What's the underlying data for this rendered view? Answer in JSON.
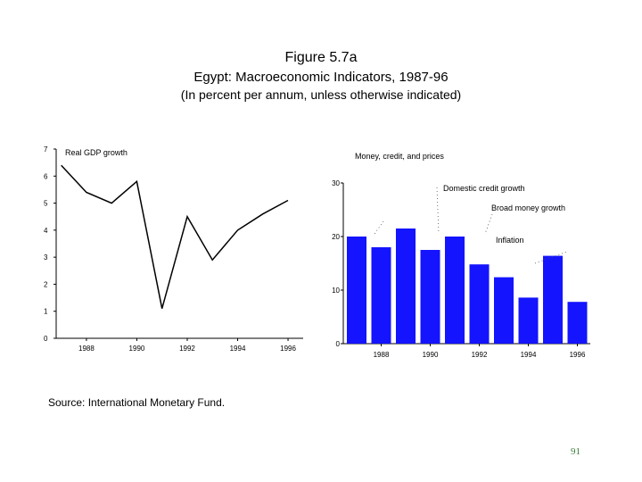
{
  "header": {
    "title": "Figure 5.7a",
    "subtitle": "Egypt: Macroeconomic Indicators, 1987-96",
    "note": "(In percent per annum, unless otherwise indicated)"
  },
  "footer": {
    "source": "Source: International Monetary Fund.",
    "page_number": "91"
  },
  "chart_data": [
    {
      "type": "line",
      "series": [
        {
          "name": "Real GDP growth",
          "x": [
            1987,
            1988,
            1989,
            1990,
            1991,
            1992,
            1993,
            1994,
            1995,
            1996
          ],
          "values": [
            6.4,
            5.4,
            5.0,
            5.8,
            1.1,
            4.5,
            2.9,
            4.0,
            4.6,
            5.1
          ]
        }
      ],
      "xticks": [
        "1988",
        "1990",
        "1992",
        "1994",
        "1996"
      ],
      "yticks": [
        "0",
        "1",
        "2",
        "3",
        "4",
        "5",
        "6",
        "7"
      ],
      "xlim": [
        1986.8,
        1996.6
      ],
      "ylim": [
        0,
        7
      ],
      "color": "#000000"
    },
    {
      "type": "bar",
      "title": "Money, credit, and prices",
      "categories": [
        1987,
        1988,
        1989,
        1990,
        1991,
        1992,
        1993,
        1994,
        1995,
        1996
      ],
      "series": [
        {
          "name": "Inflation",
          "values": [
            20.0,
            18.0,
            21.5,
            17.5,
            20.0,
            14.8,
            12.4,
            8.6,
            16.4,
            7.8
          ]
        }
      ],
      "legend": [
        "Domestic credit growth",
        "Broad money growth",
        "Inflation"
      ],
      "xticks": [
        "1988",
        "1990",
        "1992",
        "1994",
        "1996"
      ],
      "yticks": [
        "0",
        "10",
        "20",
        "30"
      ],
      "ylim": [
        0,
        30
      ],
      "color": "#1414ff"
    }
  ]
}
